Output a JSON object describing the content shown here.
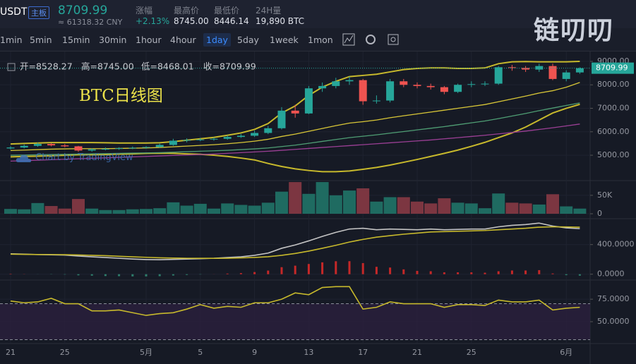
{
  "header": {
    "symbol": "USDT",
    "badge": "主板",
    "price": 8709.99,
    "cny": "≈ 61318.32 CNY",
    "stats": [
      {
        "label": "涨幅",
        "value": "+2.13%"
      },
      {
        "label": "最高价",
        "value": "8745.00"
      },
      {
        "label": "最低价",
        "value": "8446.14"
      },
      {
        "label": "24H量",
        "value": "19,890 BTC"
      }
    ]
  },
  "toolbar": {
    "intervals": [
      "1min",
      "5min",
      "15min",
      "30min",
      "1hour",
      "4hour",
      "1day",
      "5day",
      "1week",
      "1mon"
    ],
    "active": 6
  },
  "logo": "链叨叨",
  "annotation": "BTC日线图",
  "watermark": "Chart by TradingView",
  "chart_data": [
    {
      "type": "candlestick",
      "legend": [
        "开=8528.27",
        "高=8745.00",
        "低=8468.01",
        "收=8709.99"
      ],
      "categories": [
        "21",
        null,
        null,
        null,
        "25",
        null,
        null,
        null,
        null,
        null,
        "5月",
        null,
        null,
        null,
        "5",
        null,
        null,
        null,
        "9",
        null,
        null,
        null,
        "13",
        null,
        null,
        null,
        "17",
        null,
        null,
        null,
        "21",
        null,
        null,
        null,
        "25",
        null,
        null,
        null,
        null,
        null,
        null,
        "6月",
        null
      ],
      "open": [
        5290,
        5330,
        5400,
        5480,
        5420,
        5380,
        5200,
        5250,
        5270,
        5300,
        5320,
        5350,
        5440,
        5620,
        5650,
        5670,
        5700,
        5780,
        5830,
        5950,
        6150,
        6900,
        6780,
        7850,
        7950,
        8150,
        8200,
        7300,
        7330,
        8150,
        8000,
        7950,
        7900,
        7700,
        8000,
        8030,
        8050,
        8750,
        8720,
        8650,
        8800,
        8250,
        8528.27
      ],
      "high": [
        5380,
        5460,
        5540,
        5520,
        5480,
        5400,
        5300,
        5330,
        5340,
        5370,
        5380,
        5490,
        5700,
        5720,
        5740,
        5760,
        5850,
        5900,
        6050,
        6250,
        7050,
        7150,
        7950,
        8100,
        8300,
        8350,
        8250,
        7550,
        8250,
        8250,
        8100,
        8050,
        7950,
        8050,
        8150,
        8150,
        8800,
        8850,
        8800,
        8900,
        8900,
        8620,
        8745
      ],
      "low": [
        5250,
        5290,
        5360,
        5380,
        5340,
        5150,
        5150,
        5210,
        5230,
        5260,
        5280,
        5320,
        5400,
        5550,
        5600,
        5620,
        5660,
        5740,
        5780,
        5900,
        6100,
        6600,
        6750,
        7700,
        7850,
        8000,
        7150,
        7200,
        7250,
        7900,
        7850,
        7800,
        7600,
        7650,
        7900,
        7950,
        8000,
        8600,
        8550,
        8550,
        8200,
        8150,
        8468.01
      ],
      "close": [
        5330,
        5400,
        5480,
        5420,
        5380,
        5200,
        5250,
        5270,
        5300,
        5320,
        5350,
        5440,
        5620,
        5650,
        5670,
        5700,
        5780,
        5830,
        5950,
        6150,
        6900,
        6780,
        7850,
        7950,
        8150,
        8200,
        7300,
        7330,
        8150,
        8000,
        7950,
        7900,
        7700,
        8000,
        8030,
        8050,
        8750,
        8720,
        8650,
        8800,
        8250,
        8528.27,
        8709.99
      ],
      "overlays": [
        {
          "color": "#c7b92c",
          "values": [
            5480,
            5500,
            5520,
            5540,
            5540,
            5540,
            5540,
            5530,
            5520,
            5520,
            5520,
            5530,
            5580,
            5640,
            5700,
            5760,
            5850,
            5950,
            6100,
            6350,
            6800,
            7100,
            7550,
            7900,
            8150,
            8350,
            8400,
            8450,
            8550,
            8650,
            8700,
            8720,
            8720,
            8700,
            8700,
            8720,
            8900,
            8980,
            8990,
            8980,
            8980,
            8980,
            9000
          ]
        },
        {
          "color": "#d8c637",
          "values": [
            5200,
            5220,
            5240,
            5260,
            5270,
            5280,
            5280,
            5280,
            5290,
            5300,
            5310,
            5330,
            5360,
            5390,
            5420,
            5450,
            5490,
            5540,
            5600,
            5680,
            5800,
            5900,
            6020,
            6140,
            6260,
            6370,
            6430,
            6500,
            6600,
            6680,
            6760,
            6840,
            6920,
            7000,
            7080,
            7160,
            7280,
            7400,
            7520,
            7650,
            7750,
            7900,
            8100
          ]
        },
        {
          "color": "#c7b92c",
          "values": [
            4930,
            4950,
            4960,
            4980,
            5000,
            5020,
            5020,
            5030,
            5050,
            5060,
            5080,
            5090,
            5080,
            5060,
            5040,
            5000,
            4950,
            4880,
            4800,
            4650,
            4520,
            4420,
            4350,
            4300,
            4300,
            4330,
            4400,
            4480,
            4580,
            4700,
            4820,
            4950,
            5080,
            5220,
            5380,
            5550,
            5750,
            5950,
            6200,
            6500,
            6800,
            7000,
            7170
          ]
        },
        {
          "color": "#4f9e74",
          "values": [
            5000,
            5010,
            5020,
            5030,
            5040,
            5050,
            5060,
            5070,
            5080,
            5090,
            5100,
            5110,
            5130,
            5150,
            5170,
            5190,
            5210,
            5240,
            5270,
            5310,
            5370,
            5430,
            5510,
            5590,
            5670,
            5750,
            5810,
            5870,
            5940,
            6010,
            6080,
            6150,
            6220,
            6300,
            6380,
            6460,
            6560,
            6670,
            6780,
            6900,
            7010,
            7120,
            7230
          ]
        },
        {
          "color": "#9b3f95",
          "values": [
            4750,
            4770,
            4790,
            4810,
            4830,
            4850,
            4870,
            4890,
            4910,
            4930,
            4950,
            4970,
            4990,
            5010,
            5030,
            5050,
            5080,
            5110,
            5140,
            5170,
            5210,
            5250,
            5290,
            5330,
            5370,
            5410,
            5450,
            5490,
            5530,
            5570,
            5610,
            5650,
            5700,
            5750,
            5800,
            5850,
            5910,
            5970,
            6030,
            6100,
            6170,
            6250,
            6330
          ]
        }
      ],
      "up_color": "#26a69a",
      "down_color": "#ef5350",
      "ylim": [
        3950,
        9360
      ],
      "yticks": [
        {
          "value": 5000,
          "label": "5000.00"
        },
        {
          "value": 6000,
          "label": "6000.00"
        },
        {
          "value": 7000,
          "label": "7000.00"
        },
        {
          "value": 8000,
          "label": "8000.00"
        },
        {
          "value": 9000,
          "label": "9000.00"
        }
      ],
      "grid": true
    },
    {
      "type": "bar",
      "values": [
        13,
        12,
        29,
        21,
        14,
        40,
        14,
        10,
        10,
        12,
        13,
        15,
        31,
        22,
        27,
        14,
        28,
        24,
        22,
        30,
        60,
        86,
        54,
        86,
        50,
        63,
        69,
        33,
        45,
        45,
        33,
        28,
        42,
        30,
        28,
        15,
        55,
        30,
        28,
        25,
        53,
        20,
        14
      ],
      "up_color": "#1f6b61",
      "down_color": "#7c3641",
      "ylim": [
        0,
        90
      ],
      "yticks": [
        0,
        {
          "value": 50,
          "label": "50K"
        }
      ]
    },
    {
      "type": "line",
      "series": [
        {
          "color": "#c4c4c4",
          "values": [
            275,
            270,
            265,
            262,
            258,
            245,
            235,
            225,
            215,
            205,
            198,
            195,
            200,
            205,
            210,
            215,
            225,
            235,
            255,
            285,
            350,
            395,
            450,
            510,
            565,
            610,
            620,
            600,
            610,
            605,
            600,
            610,
            600,
            605,
            610,
            610,
            640,
            660,
            670,
            690,
            650,
            625,
            615
          ]
        },
        {
          "color": "#c7b92c",
          "values": [
            270,
            268,
            266,
            265,
            263,
            260,
            255,
            250,
            242,
            235,
            228,
            222,
            218,
            215,
            214,
            214,
            216,
            220,
            226,
            236,
            255,
            280,
            312,
            350,
            390,
            434,
            470,
            500,
            520,
            540,
            555,
            570,
            575,
            580,
            585,
            590,
            600,
            610,
            620,
            635,
            640,
            638,
            635
          ]
        }
      ],
      "histogram": [
        5,
        2,
        -1,
        -3,
        -5,
        -15,
        -20,
        -25,
        -27,
        -30,
        -30,
        -27,
        -18,
        -10,
        -4,
        1,
        9,
        15,
        29,
        49,
        95,
        115,
        138,
        160,
        175,
        176,
        150,
        100,
        90,
        65,
        45,
        40,
        25,
        25,
        25,
        20,
        40,
        50,
        50,
        55,
        10,
        -13,
        -20
      ],
      "up_color": "#c62828",
      "down_color": "#2e7d6b",
      "ylim": [
        -60,
        740
      ],
      "yticks": [
        {
          "value": 0,
          "label": "0.0000"
        },
        {
          "value": 400,
          "label": "400.0000"
        }
      ]
    },
    {
      "type": "line",
      "series": [
        {
          "color": "#c7b92c",
          "values": [
            73,
            71,
            72,
            76,
            70,
            70,
            62,
            62,
            63,
            60,
            57,
            59,
            60,
            64,
            69,
            65,
            67,
            66,
            71,
            71,
            75,
            82,
            80,
            88,
            89,
            89,
            64,
            66,
            72,
            70,
            70,
            70,
            66,
            69,
            69,
            68,
            74,
            72,
            72,
            74,
            63,
            65,
            66
          ]
        }
      ],
      "band": [
        30,
        70
      ],
      "ylim": [
        26.5,
        95.5
      ],
      "yticks": [
        {
          "value": 50,
          "label": "50.0000"
        },
        {
          "value": 75,
          "label": "75.0000"
        }
      ]
    }
  ]
}
